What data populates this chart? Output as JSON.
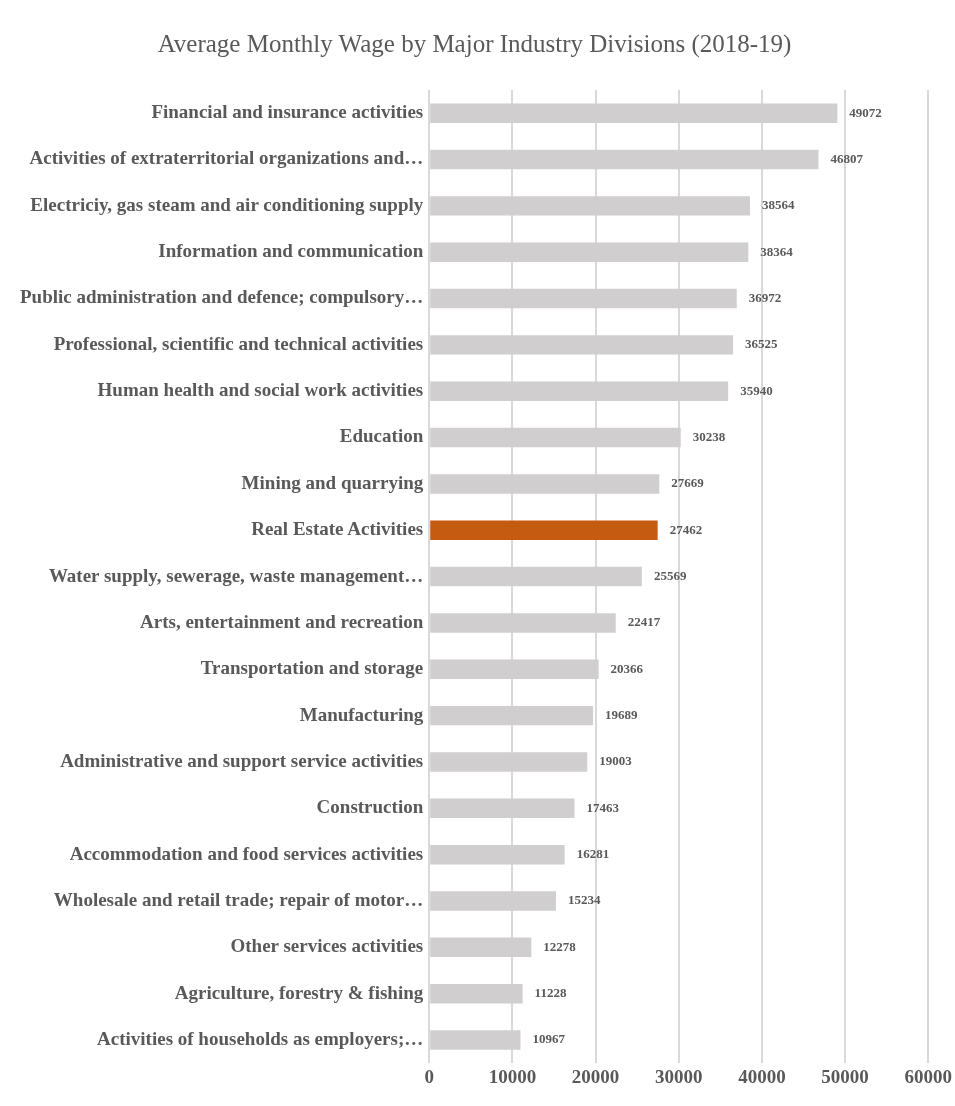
{
  "chart_data": {
    "type": "bar",
    "orientation": "horizontal",
    "title": "Average Monthly Wage by Major Industry Divisions (2018-19)",
    "categories": [
      "Financial and insurance activities",
      "Activities of extraterritorial organizations and…",
      "Electriciy, gas steam and air conditioning supply",
      "Information and communication",
      "Public administration and defence; compulsory…",
      "Professional, scientific and technical activities",
      "Human health and social work activities",
      "Education",
      "Mining and quarrying",
      "Real Estate Activities",
      "Water supply, sewerage, waste management…",
      "Arts, entertainment and recreation",
      "Transportation and storage",
      "Manufacturing",
      "Administrative and support service activities",
      "Construction",
      "Accommodation and food services activities",
      "Wholesale and retail trade; repair of motor…",
      "Other services activities",
      "Agriculture, forestry & fishing",
      "Activities of households as employers;…"
    ],
    "values": [
      49072,
      46807,
      38564,
      38364,
      36972,
      36525,
      35940,
      30238,
      27669,
      27462,
      25569,
      22417,
      20366,
      19689,
      19003,
      17463,
      16281,
      15234,
      12278,
      11228,
      10967
    ],
    "colors": [
      "#d0cece",
      "#d0cece",
      "#d0cece",
      "#d0cece",
      "#d0cece",
      "#d0cece",
      "#d0cece",
      "#d0cece",
      "#d0cece",
      "#c55a11",
      "#d0cece",
      "#d0cece",
      "#d0cece",
      "#d0cece",
      "#d0cece",
      "#d0cece",
      "#d0cece",
      "#d0cece",
      "#d0cece",
      "#d0cece",
      "#d0cece"
    ],
    "xlim": [
      0,
      60000
    ],
    "xticks": [
      0,
      10000,
      20000,
      30000,
      40000,
      50000,
      60000
    ],
    "grid": "x",
    "legend": false,
    "data_labels": true
  }
}
